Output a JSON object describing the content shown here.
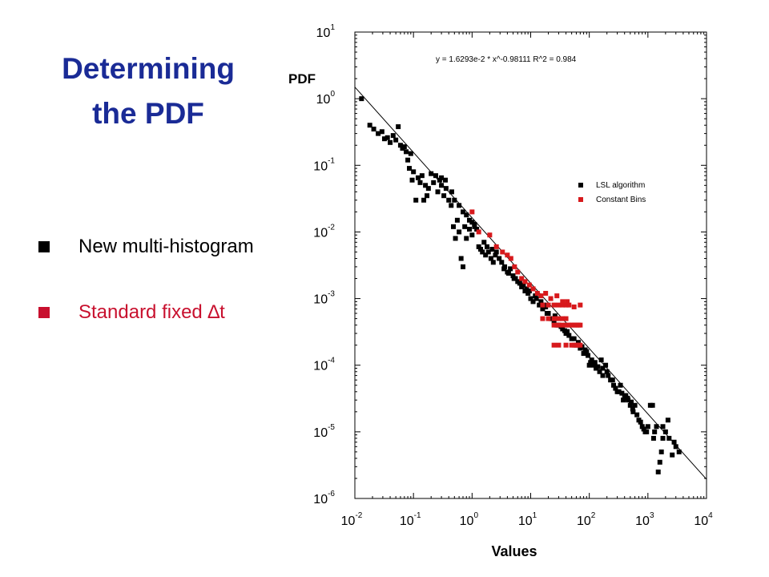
{
  "slide": {
    "title_line1": "Determining",
    "title_line2": "the PDF",
    "title_color": "#1a2b96",
    "bullets": [
      {
        "text": "New multi-histogram",
        "color": "#000000"
      },
      {
        "text": "Standard fixed ∆t",
        "color": "#c8102e"
      }
    ]
  },
  "chart_data": {
    "type": "scatter",
    "xlabel": "Values",
    "ylabel": "PDF",
    "x_scale": "log",
    "y_scale": "log",
    "xlim": [
      0.01,
      10000
    ],
    "ylim": [
      1e-06,
      10
    ],
    "x_ticks": [
      {
        "base": "10",
        "exp": "-2"
      },
      {
        "base": "10",
        "exp": "-1"
      },
      {
        "base": "10",
        "exp": "0"
      },
      {
        "base": "10",
        "exp": "1"
      },
      {
        "base": "10",
        "exp": "2"
      },
      {
        "base": "10",
        "exp": "3"
      },
      {
        "base": "10",
        "exp": "4"
      }
    ],
    "y_ticks": [
      {
        "base": "10",
        "exp": "1"
      },
      {
        "base": "10",
        "exp": "0"
      },
      {
        "base": "10",
        "exp": "-1"
      },
      {
        "base": "10",
        "exp": "-2"
      },
      {
        "base": "10",
        "exp": "-3"
      },
      {
        "base": "10",
        "exp": "-4"
      },
      {
        "base": "10",
        "exp": "-5"
      },
      {
        "base": "10",
        "exp": "-6"
      }
    ],
    "grid": false,
    "legend_position": "right",
    "fit": {
      "label": "y = 1.6293e-2 * x^-0.98111   R^2 = 0.984",
      "coefficient": 0.016293,
      "exponent": -0.98111
    },
    "series": [
      {
        "name": "LSL algorithm",
        "color": "#000000",
        "points": [
          [
            0.013,
            1.0
          ],
          [
            0.018,
            0.4
          ],
          [
            0.021,
            0.35
          ],
          [
            0.025,
            0.3
          ],
          [
            0.029,
            0.32
          ],
          [
            0.032,
            0.25
          ],
          [
            0.036,
            0.26
          ],
          [
            0.04,
            0.22
          ],
          [
            0.045,
            0.28
          ],
          [
            0.05,
            0.24
          ],
          [
            0.055,
            0.38
          ],
          [
            0.06,
            0.2
          ],
          [
            0.065,
            0.18
          ],
          [
            0.07,
            0.19
          ],
          [
            0.075,
            0.16
          ],
          [
            0.08,
            0.12
          ],
          [
            0.085,
            0.09
          ],
          [
            0.09,
            0.15
          ],
          [
            0.095,
            0.06
          ],
          [
            0.1,
            0.08
          ],
          [
            0.11,
            0.03
          ],
          [
            0.12,
            0.065
          ],
          [
            0.13,
            0.055
          ],
          [
            0.14,
            0.07
          ],
          [
            0.15,
            0.03
          ],
          [
            0.16,
            0.05
          ],
          [
            0.17,
            0.035
          ],
          [
            0.18,
            0.045
          ],
          [
            0.2,
            0.075
          ],
          [
            0.22,
            0.055
          ],
          [
            0.24,
            0.07
          ],
          [
            0.26,
            0.04
          ],
          [
            0.28,
            0.06
          ],
          [
            0.3,
            0.05
          ],
          [
            0.33,
            0.035
          ],
          [
            0.36,
            0.045
          ],
          [
            0.4,
            0.03
          ],
          [
            0.44,
            0.025
          ],
          [
            0.48,
            0.012
          ],
          [
            0.52,
            0.008
          ],
          [
            0.56,
            0.015
          ],
          [
            0.6,
            0.01
          ],
          [
            0.65,
            0.004
          ],
          [
            0.7,
            0.003
          ],
          [
            0.75,
            0.012
          ],
          [
            0.8,
            0.008
          ],
          [
            0.9,
            0.011
          ],
          [
            1.0,
            0.009
          ],
          [
            1.1,
            0.013
          ],
          [
            1.2,
            0.011
          ],
          [
            1.3,
            0.006
          ],
          [
            1.4,
            0.0055
          ],
          [
            1.5,
            0.005
          ],
          [
            1.7,
            0.0045
          ],
          [
            1.9,
            0.005
          ],
          [
            2.1,
            0.004
          ],
          [
            2.3,
            0.0035
          ],
          [
            2.6,
            0.005
          ],
          [
            2.9,
            0.004
          ],
          [
            3.2,
            0.0035
          ],
          [
            3.6,
            0.003
          ],
          [
            4.0,
            0.0025
          ],
          [
            4.5,
            0.0028
          ],
          [
            5.0,
            0.0022
          ],
          [
            5.5,
            0.002
          ],
          [
            6.0,
            0.0018
          ],
          [
            7.0,
            0.0015
          ],
          [
            8.0,
            0.0013
          ],
          [
            9.0,
            0.0012
          ],
          [
            10,
            0.001
          ],
          [
            11,
            0.0009
          ],
          [
            12,
            0.0011
          ],
          [
            14,
            0.0008
          ],
          [
            16,
            0.0007
          ],
          [
            18,
            0.00075
          ],
          [
            20,
            0.0006
          ],
          [
            23,
            0.0005
          ],
          [
            26,
            0.00055
          ],
          [
            30,
            0.0004
          ],
          [
            35,
            0.00035
          ],
          [
            40,
            0.0003
          ],
          [
            45,
            0.00028
          ],
          [
            50,
            0.00025
          ],
          [
            60,
            0.0002
          ],
          [
            70,
            0.00018
          ],
          [
            80,
            0.00015
          ],
          [
            90,
            0.00016
          ],
          [
            100,
            0.0001
          ],
          [
            110,
            0.00012
          ],
          [
            120,
            0.0001
          ],
          [
            130,
            9e-05
          ],
          [
            150,
            8e-05
          ],
          [
            160,
            0.00012
          ],
          [
            170,
            7e-05
          ],
          [
            190,
            0.0001
          ],
          [
            200,
            8e-05
          ],
          [
            230,
            6e-05
          ],
          [
            260,
            5e-05
          ],
          [
            300,
            4e-05
          ],
          [
            340,
            5e-05
          ],
          [
            380,
            3e-05
          ],
          [
            420,
            3.5e-05
          ],
          [
            460,
            3e-05
          ],
          [
            500,
            2.5e-05
          ],
          [
            560,
            2e-05
          ],
          [
            600,
            2.5e-05
          ],
          [
            650,
            1.8e-05
          ],
          [
            700,
            1.5e-05
          ],
          [
            800,
            1.2e-05
          ],
          [
            900,
            1e-05
          ],
          [
            1000,
            1.2e-05
          ],
          [
            1100,
            2.5e-05
          ],
          [
            1200,
            2.5e-05
          ],
          [
            1300,
            1e-05
          ],
          [
            1400,
            1.2e-05
          ],
          [
            1500,
            2.5e-06
          ],
          [
            1600,
            3.5e-06
          ],
          [
            1700,
            5e-06
          ],
          [
            1800,
            8e-06
          ],
          [
            2000,
            1e-05
          ],
          [
            2300,
            8e-06
          ],
          [
            2600,
            4.5e-06
          ],
          [
            3000,
            6e-06
          ],
          [
            3400,
            5e-06
          ],
          [
            0.6,
            0.025
          ],
          [
            0.7,
            0.02
          ],
          [
            0.8,
            0.018
          ],
          [
            0.9,
            0.015
          ],
          [
            1.0,
            0.014
          ],
          [
            1.1,
            0.012
          ],
          [
            0.5,
            0.03
          ],
          [
            0.45,
            0.04
          ],
          [
            0.35,
            0.06
          ],
          [
            0.3,
            0.065
          ],
          [
            1.6,
            0.007
          ],
          [
            1.8,
            0.006
          ],
          [
            2.2,
            0.0055
          ],
          [
            2.5,
            0.0045
          ],
          [
            3.5,
            0.0028
          ],
          [
            4.2,
            0.0024
          ],
          [
            5.2,
            0.002
          ],
          [
            6.5,
            0.0017
          ],
          [
            7.5,
            0.0016
          ],
          [
            8.5,
            0.0014
          ],
          [
            9.5,
            0.0013
          ],
          [
            12.5,
            0.001
          ],
          [
            15,
            0.0009
          ],
          [
            17,
            0.0008
          ],
          [
            19,
            0.0006
          ],
          [
            22,
            0.0005
          ],
          [
            25,
            0.00045
          ],
          [
            28,
            0.0004
          ],
          [
            33,
            0.00038
          ],
          [
            38,
            0.00033
          ],
          [
            42,
            0.00032
          ],
          [
            55,
            0.00025
          ],
          [
            65,
            0.00022
          ],
          [
            75,
            0.00019
          ],
          [
            85,
            0.00017
          ],
          [
            95,
            0.00014
          ],
          [
            105,
            0.00011
          ],
          [
            125,
            0.00011
          ],
          [
            140,
            9.5e-05
          ],
          [
            170,
            9e-05
          ],
          [
            210,
            7e-05
          ],
          [
            250,
            6e-05
          ],
          [
            280,
            4.5e-05
          ],
          [
            320,
            4e-05
          ],
          [
            360,
            3.8e-05
          ],
          [
            400,
            3.5e-05
          ],
          [
            450,
            3.2e-05
          ],
          [
            520,
            2.8e-05
          ],
          [
            550,
            2.2e-05
          ],
          [
            750,
            1.4e-05
          ],
          [
            850,
            1.1e-05
          ],
          [
            950,
            1e-05
          ],
          [
            1250,
            8e-06
          ],
          [
            1800,
            1.2e-05
          ],
          [
            2200,
            1.5e-05
          ],
          [
            2800,
            7e-06
          ]
        ]
      },
      {
        "name": "Constant Bins",
        "color": "#d7191c",
        "points": [
          [
            1.0,
            0.02
          ],
          [
            1.3,
            0.01
          ],
          [
            2.0,
            0.009
          ],
          [
            2.6,
            0.006
          ],
          [
            3.3,
            0.005
          ],
          [
            4.0,
            0.0045
          ],
          [
            4.6,
            0.004
          ],
          [
            5.3,
            0.003
          ],
          [
            6.0,
            0.0025
          ],
          [
            7.0,
            0.002
          ],
          [
            8.0,
            0.0018
          ],
          [
            9.5,
            0.0016
          ],
          [
            11,
            0.0014
          ],
          [
            13,
            0.0012
          ],
          [
            15,
            0.0011
          ],
          [
            16,
            0.0008
          ],
          [
            20,
            0.0008
          ],
          [
            25,
            0.0008
          ],
          [
            30,
            0.0008
          ],
          [
            35,
            0.0008
          ],
          [
            40,
            0.0008
          ],
          [
            45,
            0.0008
          ],
          [
            70,
            0.0008
          ],
          [
            16,
            0.0005
          ],
          [
            20,
            0.0005
          ],
          [
            25,
            0.0005
          ],
          [
            30,
            0.0005
          ],
          [
            35,
            0.0005
          ],
          [
            40,
            0.0005
          ],
          [
            25,
            0.0004
          ],
          [
            30,
            0.0004
          ],
          [
            35,
            0.0004
          ],
          [
            40,
            0.0004
          ],
          [
            45,
            0.0004
          ],
          [
            50,
            0.0004
          ],
          [
            55,
            0.0004
          ],
          [
            60,
            0.0004
          ],
          [
            65,
            0.0004
          ],
          [
            70,
            0.0004
          ],
          [
            25,
            0.0002
          ],
          [
            30,
            0.0002
          ],
          [
            40,
            0.0002
          ],
          [
            50,
            0.0002
          ],
          [
            55,
            0.0002
          ],
          [
            60,
            0.0002
          ],
          [
            65,
            0.0002
          ],
          [
            70,
            0.0002
          ],
          [
            18,
            0.0012
          ],
          [
            22,
            0.001
          ],
          [
            28,
            0.0011
          ],
          [
            35,
            0.0009
          ],
          [
            42,
            0.0009
          ],
          [
            55,
            0.00075
          ]
        ]
      }
    ]
  }
}
